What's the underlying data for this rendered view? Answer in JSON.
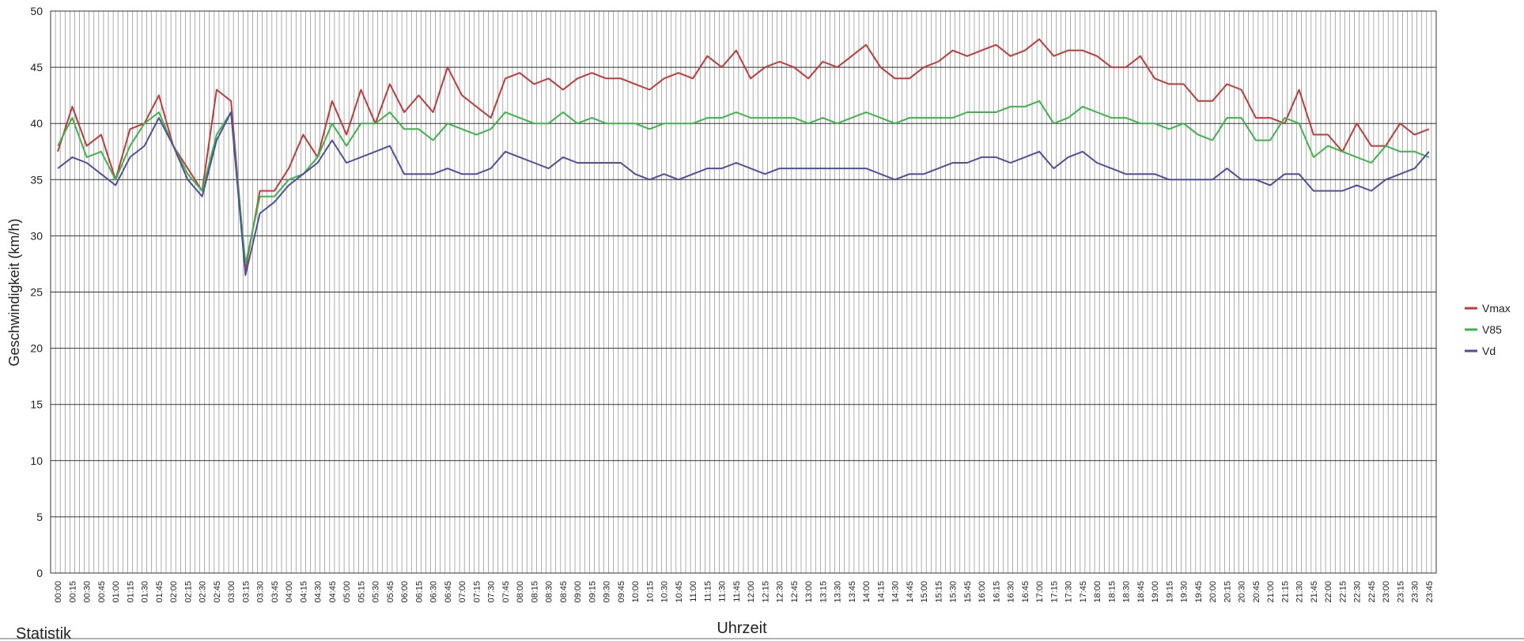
{
  "chart_data": {
    "type": "line",
    "x_label": "Uhrzeit",
    "y_label": "Geschwindigkeit (km/h)",
    "categories": [
      "00:00",
      "00:15",
      "00:30",
      "00:45",
      "01:00",
      "01:15",
      "01:30",
      "01:45",
      "02:00",
      "02:15",
      "02:30",
      "02:45",
      "03:00",
      "03:15",
      "03:30",
      "03:45",
      "04:00",
      "04:15",
      "04:30",
      "04:45",
      "05:00",
      "05:15",
      "05:30",
      "05:45",
      "06:00",
      "06:15",
      "06:30",
      "06:45",
      "07:00",
      "07:15",
      "07:30",
      "07:45",
      "08:00",
      "08:15",
      "08:30",
      "08:45",
      "09:00",
      "09:15",
      "09:30",
      "09:45",
      "10:00",
      "10:15",
      "10:30",
      "10:45",
      "11:00",
      "11:15",
      "11:30",
      "11:45",
      "12:00",
      "12:15",
      "12:30",
      "12:45",
      "13:00",
      "13:15",
      "13:30",
      "13:45",
      "14:00",
      "14:15",
      "14:30",
      "14:45",
      "15:00",
      "15:15",
      "15:30",
      "15:45",
      "16:00",
      "16:15",
      "16:30",
      "16:45",
      "17:00",
      "17:15",
      "17:30",
      "17:45",
      "18:00",
      "18:15",
      "18:30",
      "18:45",
      "19:00",
      "19:15",
      "19:30",
      "19:45",
      "20:00",
      "20:15",
      "20:30",
      "20:45",
      "21:00",
      "21:15",
      "21:30",
      "21:45",
      "22:00",
      "22:15",
      "22:30",
      "22:45",
      "23:00",
      "23:15",
      "23:30",
      "23:45"
    ],
    "series": [
      {
        "name": "Vmax",
        "color": "#c23b3b",
        "values": [
          37.5,
          41.5,
          38,
          39,
          35,
          39.5,
          40,
          42.5,
          38,
          36,
          34,
          43,
          42,
          27,
          34,
          34,
          36,
          39,
          37,
          42,
          39,
          43,
          40,
          43.5,
          41,
          42.5,
          41,
          45,
          42.5,
          41.5,
          40.5,
          44,
          44.5,
          43.5,
          44,
          43,
          44,
          44.5,
          44,
          44,
          43.5,
          43,
          44,
          44.5,
          44,
          46,
          45,
          46.5,
          44,
          45,
          45.5,
          45,
          44,
          45.5,
          45,
          46,
          47,
          45,
          44,
          44,
          45,
          45.5,
          46.5,
          46,
          46.5,
          47,
          46,
          46.5,
          47.5,
          46,
          46.5,
          46.5,
          46,
          45,
          45,
          46,
          44,
          43.5,
          43.5,
          42,
          42,
          43.5,
          43,
          40.5,
          40.5,
          40,
          43,
          39,
          39,
          37.5,
          40,
          38,
          38,
          40,
          39,
          39.5
        ]
      },
      {
        "name": "V85",
        "color": "#3cb54a",
        "values": [
          38,
          40.5,
          37,
          37.5,
          35,
          38,
          40,
          41,
          38,
          35.5,
          34,
          39,
          41,
          27.5,
          33.5,
          33.5,
          35,
          35.5,
          37,
          40,
          38,
          40,
          40,
          41,
          39.5,
          39.5,
          38.5,
          40,
          39.5,
          39,
          39.5,
          41,
          40.5,
          40,
          40,
          41,
          40,
          40.5,
          40,
          40,
          40,
          39.5,
          40,
          40,
          40,
          40.5,
          40.5,
          41,
          40.5,
          40.5,
          40.5,
          40.5,
          40,
          40.5,
          40,
          40.5,
          41,
          40.5,
          40,
          40.5,
          40.5,
          40.5,
          40.5,
          41,
          41,
          41,
          41.5,
          41.5,
          42,
          40,
          40.5,
          41.5,
          41,
          40.5,
          40.5,
          40,
          40,
          39.5,
          40,
          39,
          38.5,
          40.5,
          40.5,
          38.5,
          38.5,
          40.5,
          40,
          37,
          38,
          37.5,
          37,
          36.5,
          38,
          37.5,
          37.5,
          37
        ]
      },
      {
        "name": "Vd",
        "color": "#4f4fa0",
        "values": [
          36,
          37,
          36.5,
          35.5,
          34.5,
          37,
          38,
          40.5,
          38,
          35,
          33.5,
          38.5,
          41,
          26.5,
          32,
          33,
          34.5,
          35.5,
          36.5,
          38.5,
          36.5,
          37,
          37.5,
          38,
          35.5,
          35.5,
          35.5,
          36,
          35.5,
          35.5,
          36,
          37.5,
          37,
          36.5,
          36,
          37,
          36.5,
          36.5,
          36.5,
          36.5,
          35.5,
          35,
          35.5,
          35,
          35.5,
          36,
          36,
          36.5,
          36,
          35.5,
          36,
          36,
          36,
          36,
          36,
          36,
          36,
          35.5,
          35,
          35.5,
          35.5,
          36,
          36.5,
          36.5,
          37,
          37,
          36.5,
          37,
          37.5,
          36,
          37,
          37.5,
          36.5,
          36,
          35.5,
          35.5,
          35.5,
          35,
          35,
          35,
          35,
          36,
          35,
          35,
          34.5,
          35.5,
          35.5,
          34,
          34,
          34,
          34.5,
          34,
          35,
          35.5,
          36,
          37.5
        ]
      }
    ],
    "ylim": [
      0,
      50
    ],
    "yticks": [
      0,
      5,
      10,
      15,
      20,
      25,
      30,
      35,
      40,
      45,
      50
    ],
    "grid": true,
    "legend": "right"
  },
  "footer": {
    "section_title": "Statistik"
  }
}
